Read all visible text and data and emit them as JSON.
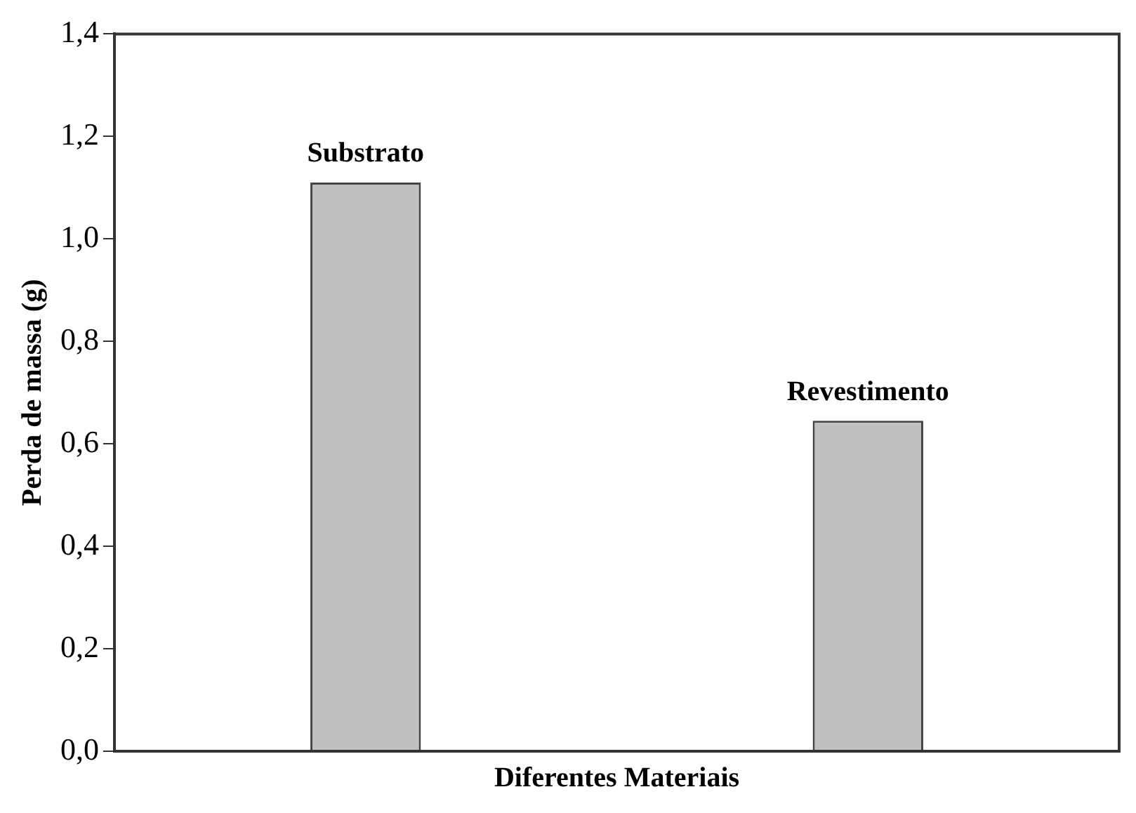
{
  "chart_data": {
    "type": "bar",
    "xlabel": "Diferentes Materiais",
    "ylabel": "Perda de massa (g)",
    "categories": [
      "Substrato",
      "Revestimento"
    ],
    "values": [
      1.11,
      0.645
    ],
    "color": "#c0c0c0",
    "ylim": [
      0,
      1.4
    ],
    "yticks": [
      {
        "value": 0,
        "label": "0,0"
      },
      {
        "value": 0.2,
        "label": "0,2"
      },
      {
        "value": 0.4,
        "label": "0,4"
      },
      {
        "value": 0.6,
        "label": "0,6"
      },
      {
        "value": 0.8,
        "label": "0,8"
      },
      {
        "value": 1,
        "label": "1,0"
      },
      {
        "value": 1.2,
        "label": "1,2"
      },
      {
        "value": 1.4,
        "label": "1,4"
      }
    ],
    "grid": false,
    "legend": false
  }
}
